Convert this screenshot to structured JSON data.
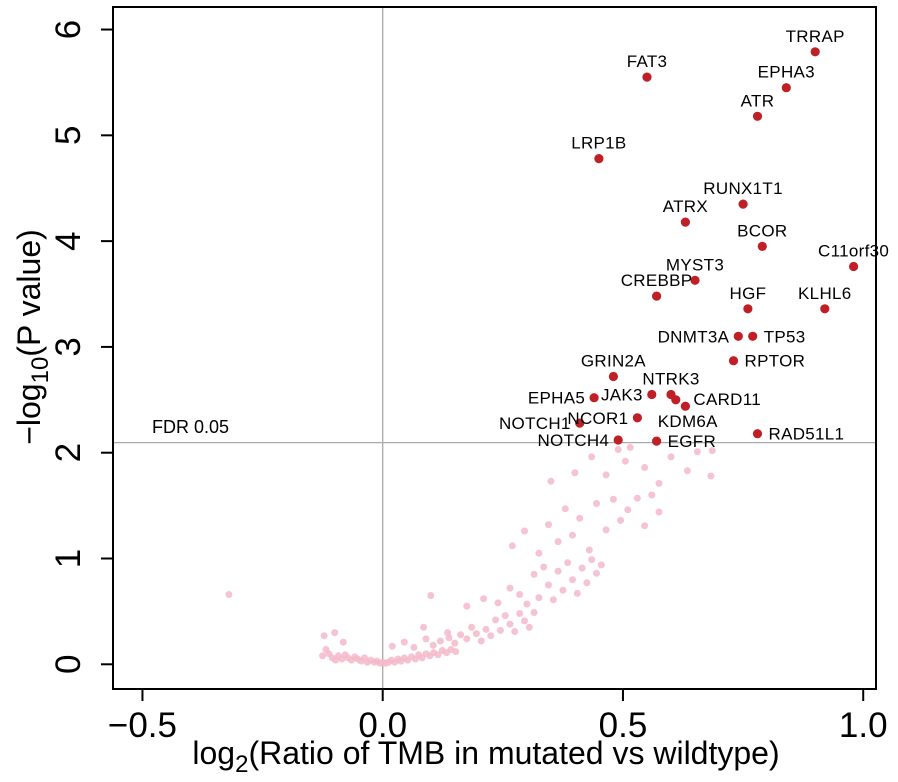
{
  "chart_data": {
    "type": "scatter",
    "title": "",
    "xlabel": {
      "base": "log",
      "sub": "2",
      "rest": "(Ratio of TMB in mutated vs wildtype)"
    },
    "ylabel": {
      "base": "−log",
      "sub": "10",
      "rest": "(P value)"
    },
    "xlim": [
      -0.5613,
      1.0266
    ],
    "ylim": [
      -0.2335,
      6.213
    ],
    "grid": "off",
    "legend": "none",
    "x_ticks": {
      "values": [
        -0.5,
        0.0,
        0.5,
        1.0
      ],
      "labels": [
        "−0.5",
        "0.0",
        "0.5",
        "1.0"
      ]
    },
    "y_ticks": {
      "values": [
        0,
        1,
        2,
        3,
        4,
        5,
        6
      ],
      "labels": [
        "0",
        "1",
        "2",
        "3",
        "4",
        "5",
        "6"
      ]
    },
    "reference_lines": {
      "vertical_x": 0.0,
      "fdr_threshold_y": 2.095,
      "fdr_label": "FDR 0.05"
    },
    "colors": {
      "significant_point": "#C01F25",
      "background_point": "#F4B8CA",
      "reference_line": "#A9A9A9",
      "axis": "#000000"
    },
    "significant_genes": [
      {
        "gene": "TRRAP",
        "x": 0.9,
        "y": 5.79,
        "label_pos": "above"
      },
      {
        "gene": "FAT3",
        "x": 0.55,
        "y": 5.55,
        "label_pos": "above"
      },
      {
        "gene": "EPHA3",
        "x": 0.84,
        "y": 5.45,
        "label_pos": "above"
      },
      {
        "gene": "ATR",
        "x": 0.78,
        "y": 5.18,
        "label_pos": "above"
      },
      {
        "gene": "LRP1B",
        "x": 0.45,
        "y": 4.78,
        "label_pos": "above"
      },
      {
        "gene": "RUNX1T1",
        "x": 0.75,
        "y": 4.35,
        "label_pos": "above"
      },
      {
        "gene": "ATRX",
        "x": 0.63,
        "y": 4.18,
        "label_pos": "above"
      },
      {
        "gene": "BCOR",
        "x": 0.79,
        "y": 3.95,
        "label_pos": "above"
      },
      {
        "gene": "C11orf30",
        "x": 0.98,
        "y": 3.76,
        "label_pos": "above"
      },
      {
        "gene": "MYST3",
        "x": 0.65,
        "y": 3.63,
        "label_pos": "above"
      },
      {
        "gene": "CREBBP",
        "x": 0.57,
        "y": 3.48,
        "label_pos": "above"
      },
      {
        "gene": "HGF",
        "x": 0.76,
        "y": 3.36,
        "label_pos": "above"
      },
      {
        "gene": "KLHL6",
        "x": 0.92,
        "y": 3.36,
        "label_pos": "above"
      },
      {
        "gene": "DNMT3A",
        "x": 0.74,
        "y": 3.1,
        "label_pos": "left"
      },
      {
        "gene": "TP53",
        "x": 0.77,
        "y": 3.1,
        "label_pos": "right"
      },
      {
        "gene": "RPTOR",
        "x": 0.73,
        "y": 2.87,
        "label_pos": "right"
      },
      {
        "gene": "GRIN2A",
        "x": 0.48,
        "y": 2.72,
        "label_pos": "above"
      },
      {
        "gene": "NTRK3",
        "x": 0.6,
        "y": 2.55,
        "label_pos": "above"
      },
      {
        "gene": "JAK3",
        "x": 0.56,
        "y": 2.55,
        "label_pos": "left"
      },
      {
        "gene": "EPHA5",
        "x": 0.44,
        "y": 2.52,
        "label_pos": "left"
      },
      {
        "gene": "KDM6A",
        "x": 0.61,
        "y": 2.5,
        "label_pos": "below-right"
      },
      {
        "gene": "CARD11",
        "x": 0.63,
        "y": 2.44,
        "label_pos": "right-up"
      },
      {
        "gene": "NCOR1",
        "x": 0.53,
        "y": 2.33,
        "label_pos": "left"
      },
      {
        "gene": "NOTCH1",
        "x": 0.41,
        "y": 2.28,
        "label_pos": "left"
      },
      {
        "gene": "NOTCH4",
        "x": 0.49,
        "y": 2.12,
        "label_pos": "left"
      },
      {
        "gene": "EGFR",
        "x": 0.57,
        "y": 2.11,
        "label_pos": "right"
      },
      {
        "gene": "RAD51L1",
        "x": 0.78,
        "y": 2.18,
        "label_pos": "right"
      }
    ],
    "background_points": [
      [
        -0.32,
        0.66
      ],
      [
        -0.125,
        0.08
      ],
      [
        -0.118,
        0.14
      ],
      [
        -0.112,
        0.1
      ],
      [
        -0.105,
        0.06
      ],
      [
        -0.098,
        0.04
      ],
      [
        -0.092,
        0.08
      ],
      [
        -0.085,
        0.05
      ],
      [
        -0.078,
        0.09
      ],
      [
        -0.072,
        0.06
      ],
      [
        -0.065,
        0.04
      ],
      [
        -0.058,
        0.07
      ],
      [
        -0.052,
        0.05
      ],
      [
        -0.045,
        0.03
      ],
      [
        -0.038,
        0.06
      ],
      [
        -0.032,
        0.02
      ],
      [
        -0.025,
        0.04
      ],
      [
        -0.018,
        0.02
      ],
      [
        -0.012,
        0.03
      ],
      [
        -0.006,
        0.01
      ],
      [
        0.0,
        0.02
      ],
      [
        0.006,
        0.01
      ],
      [
        0.012,
        0.02
      ],
      [
        0.018,
        0.04
      ],
      [
        0.025,
        0.02
      ],
      [
        0.032,
        0.05
      ],
      [
        0.038,
        0.03
      ],
      [
        0.045,
        0.06
      ],
      [
        0.052,
        0.04
      ],
      [
        0.06,
        0.07
      ],
      [
        0.068,
        0.05
      ],
      [
        0.075,
        0.09
      ],
      [
        0.082,
        0.06
      ],
      [
        0.09,
        0.1
      ],
      [
        0.098,
        0.08
      ],
      [
        0.106,
        0.11
      ],
      [
        0.115,
        0.09
      ],
      [
        0.124,
        0.13
      ],
      [
        0.133,
        0.11
      ],
      [
        0.142,
        0.14
      ],
      [
        0.152,
        0.12
      ],
      [
        -0.122,
        0.27
      ],
      [
        -0.1,
        0.3
      ],
      [
        -0.082,
        0.21
      ],
      [
        0.02,
        0.17
      ],
      [
        0.045,
        0.21
      ],
      [
        0.065,
        0.16
      ],
      [
        0.085,
        0.35
      ],
      [
        0.09,
        0.24
      ],
      [
        0.105,
        0.18
      ],
      [
        0.12,
        0.22
      ],
      [
        0.135,
        0.3
      ],
      [
        0.138,
        0.25
      ],
      [
        0.15,
        0.2
      ],
      [
        0.162,
        0.28
      ],
      [
        0.175,
        0.24
      ],
      [
        0.185,
        0.35
      ],
      [
        0.195,
        0.29
      ],
      [
        0.205,
        0.22
      ],
      [
        0.215,
        0.33
      ],
      [
        0.225,
        0.27
      ],
      [
        0.235,
        0.42
      ],
      [
        0.245,
        0.32
      ],
      [
        0.255,
        0.46
      ],
      [
        0.265,
        0.38
      ],
      [
        0.275,
        0.31
      ],
      [
        0.285,
        0.48
      ],
      [
        0.295,
        0.41
      ],
      [
        0.305,
        0.35
      ],
      [
        0.315,
        0.49
      ],
      [
        0.1,
        0.65
      ],
      [
        0.175,
        0.55
      ],
      [
        0.21,
        0.62
      ],
      [
        0.24,
        0.58
      ],
      [
        0.265,
        0.72
      ],
      [
        0.285,
        0.66
      ],
      [
        0.3,
        0.57
      ],
      [
        0.315,
        0.85
      ],
      [
        0.325,
        0.63
      ],
      [
        0.335,
        0.92
      ],
      [
        0.345,
        0.75
      ],
      [
        0.355,
        0.61
      ],
      [
        0.365,
        0.88
      ],
      [
        0.375,
        0.7
      ],
      [
        0.385,
        0.96
      ],
      [
        0.395,
        0.8
      ],
      [
        0.405,
        0.67
      ],
      [
        0.415,
        0.91
      ],
      [
        0.425,
        0.77
      ],
      [
        0.435,
        0.99
      ],
      [
        0.445,
        0.86
      ],
      [
        0.455,
        0.94
      ],
      [
        0.27,
        1.12
      ],
      [
        0.295,
        1.26
      ],
      [
        0.325,
        1.05
      ],
      [
        0.345,
        1.32
      ],
      [
        0.365,
        1.16
      ],
      [
        0.38,
        1.47
      ],
      [
        0.395,
        1.22
      ],
      [
        0.41,
        1.38
      ],
      [
        0.43,
        1.08
      ],
      [
        0.445,
        1.52
      ],
      [
        0.465,
        1.27
      ],
      [
        0.48,
        1.56
      ],
      [
        0.495,
        1.36
      ],
      [
        0.51,
        1.46
      ],
      [
        0.53,
        1.57
      ],
      [
        0.545,
        1.31
      ],
      [
        0.56,
        1.6
      ],
      [
        0.575,
        1.44
      ],
      [
        0.35,
        1.73
      ],
      [
        0.4,
        1.81
      ],
      [
        0.435,
        1.96
      ],
      [
        0.465,
        1.79
      ],
      [
        0.49,
        2.03
      ],
      [
        0.505,
        1.92
      ],
      [
        0.515,
        2.05
      ],
      [
        0.545,
        1.86
      ],
      [
        0.575,
        1.71
      ],
      [
        0.6,
        1.96
      ],
      [
        0.634,
        1.83
      ],
      [
        0.655,
        2.01
      ],
      [
        0.683,
        1.78
      ],
      [
        0.686,
        2.02
      ]
    ]
  }
}
